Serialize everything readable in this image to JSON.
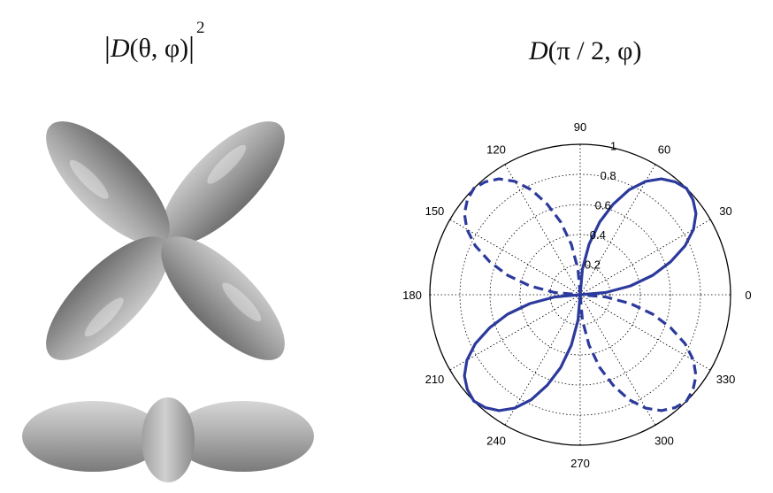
{
  "left_title": {
    "prefix": "D",
    "args": "(θ, φ)",
    "exponent": "2"
  },
  "right_title": {
    "prefix": "D",
    "args": "(π / 2, φ)"
  },
  "illustration": {
    "top_lobe_angles_deg": [
      45,
      135,
      225,
      315
    ],
    "fill_color": "#9c9c9c"
  },
  "chart_data": {
    "type": "polar",
    "theta_unit": "degrees",
    "angle_ticks": [
      "0",
      "30",
      "60",
      "90",
      "120",
      "150",
      "180",
      "210",
      "240",
      "270",
      "300",
      "330"
    ],
    "radial_ticks": [
      "0.2",
      "0.4",
      "0.6",
      "0.8",
      "1"
    ],
    "rlim": [
      0,
      1
    ],
    "grid": true,
    "series": [
      {
        "style": "solid",
        "color": "#2b3a9c",
        "theta_deg": [
          0,
          5,
          10,
          15,
          20,
          25,
          30,
          35,
          40,
          45,
          50,
          55,
          60,
          65,
          70,
          75,
          80,
          85,
          90
        ],
        "r": [
          0,
          0.17,
          0.34,
          0.5,
          0.64,
          0.77,
          0.87,
          0.94,
          0.98,
          1,
          0.98,
          0.94,
          0.87,
          0.77,
          0.64,
          0.5,
          0.34,
          0.17,
          0
        ]
      },
      {
        "style": "dashed",
        "color": "#2b3a9c",
        "theta_deg": [
          90,
          95,
          100,
          105,
          110,
          115,
          120,
          125,
          130,
          135,
          140,
          145,
          150,
          155,
          160,
          165,
          170,
          175,
          180
        ],
        "r": [
          0,
          0.17,
          0.34,
          0.5,
          0.64,
          0.77,
          0.87,
          0.94,
          0.98,
          1,
          0.98,
          0.94,
          0.87,
          0.77,
          0.64,
          0.5,
          0.34,
          0.17,
          0
        ]
      },
      {
        "style": "solid",
        "color": "#2b3a9c",
        "theta_deg": [
          180,
          185,
          190,
          195,
          200,
          205,
          210,
          215,
          220,
          225,
          230,
          235,
          240,
          245,
          250,
          255,
          260,
          265,
          270
        ],
        "r": [
          0,
          0.17,
          0.34,
          0.5,
          0.64,
          0.77,
          0.87,
          0.94,
          0.98,
          1,
          0.98,
          0.94,
          0.87,
          0.77,
          0.64,
          0.5,
          0.34,
          0.17,
          0
        ]
      },
      {
        "style": "dashed",
        "color": "#2b3a9c",
        "theta_deg": [
          270,
          275,
          280,
          285,
          290,
          295,
          300,
          305,
          310,
          315,
          320,
          325,
          330,
          335,
          340,
          345,
          350,
          355,
          360
        ],
        "r": [
          0,
          0.17,
          0.34,
          0.5,
          0.64,
          0.77,
          0.87,
          0.94,
          0.98,
          1,
          0.98,
          0.94,
          0.87,
          0.77,
          0.64,
          0.5,
          0.34,
          0.17,
          0
        ]
      }
    ]
  }
}
